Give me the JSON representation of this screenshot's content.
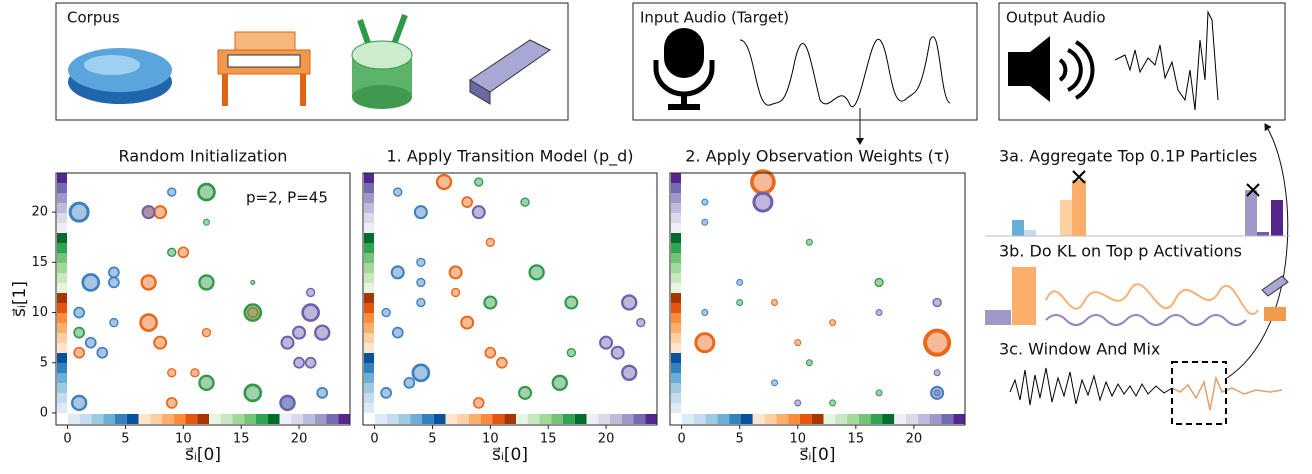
{
  "panels": {
    "corpus": "Corpus",
    "input": "Input Audio (Target)",
    "output": "Output Audio",
    "step3a": "3a. Aggregate Top 0.1P Particles",
    "step3b": "3b. Do KL on Top p Activations",
    "step3c": "3c. Window And Mix"
  },
  "chart_data": [
    {
      "type": "scatter",
      "title": "Random Initialization",
      "annotation": "p=2, P=45",
      "x_label": "s⃗ᵢ[0]",
      "y_label": "s⃗ᵢ[1]",
      "xlim": [
        -1,
        24.4
      ],
      "ylim": [
        -1.2,
        23.9
      ],
      "xticks": [
        0,
        5,
        10,
        15,
        20
      ],
      "yticks": [
        0,
        5,
        10,
        15,
        20
      ],
      "series": [
        {
          "color": "#3b7fc0",
          "x": [
            1,
            2,
            4,
            4,
            2,
            1,
            4,
            1,
            19,
            22,
            9,
            3
          ],
          "values": [
            20,
            13,
            14,
            13,
            7,
            10,
            9,
            1,
            1,
            2,
            22,
            6
          ],
          "sizes": [
            9,
            8,
            5,
            5,
            5,
            5,
            4,
            7,
            7,
            5,
            4,
            5
          ]
        },
        {
          "color": "#e8691a",
          "x": [
            7,
            10,
            7,
            8,
            7,
            11,
            9,
            1,
            12,
            8,
            16,
            9
          ],
          "values": [
            9,
            16,
            13,
            20,
            20,
            4,
            1,
            6,
            8,
            7,
            10,
            4
          ],
          "sizes": [
            8,
            5,
            7,
            6,
            6,
            4,
            5,
            5,
            4,
            6,
            5,
            4
          ]
        },
        {
          "color": "#2e9a48",
          "x": [
            12,
            12,
            16,
            16,
            16,
            12,
            1,
            12,
            9
          ],
          "values": [
            22,
            13,
            13,
            10,
            2,
            3,
            8,
            19,
            16
          ],
          "sizes": [
            8,
            7,
            2,
            8,
            8,
            7,
            5,
            3,
            4
          ]
        },
        {
          "color": "#6f5fac",
          "x": [
            21,
            20,
            21,
            22,
            19,
            7,
            21,
            19,
            20
          ],
          "values": [
            10,
            8,
            5,
            8,
            7,
            20,
            12,
            1,
            5
          ],
          "sizes": [
            8,
            6,
            5,
            7,
            6,
            6,
            4,
            7,
            5
          ]
        }
      ]
    },
    {
      "type": "scatter",
      "title": "1. Apply Transition Model (p_d)",
      "x_label": "s⃗ᵢ[0]",
      "xlim": [
        -1,
        24.4
      ],
      "ylim": [
        -1.2,
        23.9
      ],
      "xticks": [
        0,
        5,
        10,
        15,
        20
      ],
      "yticks": [
        0,
        5,
        10,
        15,
        20
      ],
      "series": [
        {
          "color": "#3b7fc0",
          "x": [
            2,
            4,
            2,
            4,
            4,
            1,
            4,
            2,
            4,
            1,
            3
          ],
          "values": [
            22,
            20,
            14,
            15,
            13,
            10,
            11,
            8,
            4,
            2,
            3
          ],
          "sizes": [
            4,
            6,
            6,
            4,
            4,
            4,
            4,
            5,
            8,
            5,
            5
          ]
        },
        {
          "color": "#e8691a",
          "x": [
            6,
            8,
            7,
            8,
            10,
            9,
            10,
            11,
            7
          ],
          "values": [
            23,
            21,
            14,
            9,
            6,
            1,
            17,
            5,
            12
          ],
          "sizes": [
            7,
            5,
            6,
            6,
            5,
            5,
            4,
            5,
            4
          ]
        },
        {
          "color": "#2e9a48",
          "x": [
            9,
            13,
            14,
            17,
            16,
            13,
            17,
            10
          ],
          "values": [
            23,
            21,
            14,
            11,
            3,
            2,
            6,
            11
          ],
          "sizes": [
            4,
            4,
            7,
            6,
            7,
            6,
            4,
            6
          ]
        },
        {
          "color": "#6f5fac",
          "x": [
            22,
            23,
            22,
            20,
            21,
            9
          ],
          "values": [
            11,
            9,
            4,
            7,
            6,
            20
          ],
          "sizes": [
            7,
            4,
            7,
            6,
            6,
            6
          ]
        }
      ]
    },
    {
      "type": "scatter",
      "title": "2. Apply Observation Weights (τ)",
      "x_label": "s⃗ᵢ[0]",
      "xlim": [
        -1,
        24.4
      ],
      "ylim": [
        -1.2,
        23.9
      ],
      "xticks": [
        0,
        5,
        10,
        15,
        20
      ],
      "yticks": [
        0,
        5,
        10,
        15,
        20
      ],
      "series": [
        {
          "color": "#3b7fc0",
          "x": [
            2,
            2,
            22,
            2,
            5,
            8
          ],
          "values": [
            21,
            19,
            2,
            10,
            13,
            3
          ],
          "sizes": [
            3,
            3,
            6,
            3,
            3,
            3
          ]
        },
        {
          "color": "#e8691a",
          "x": [
            7,
            2,
            22,
            10,
            8,
            13
          ],
          "values": [
            23,
            7,
            7,
            7,
            11,
            9
          ],
          "sizes": [
            11,
            9,
            12,
            3,
            3,
            3
          ]
        },
        {
          "color": "#2e9a48",
          "x": [
            11,
            17,
            13,
            11,
            17,
            5
          ],
          "values": [
            17,
            13,
            1,
            5,
            2,
            11
          ],
          "sizes": [
            3,
            4,
            3,
            3,
            3,
            3
          ]
        },
        {
          "color": "#6f5fac",
          "x": [
            7,
            22,
            17,
            22,
            22,
            10
          ],
          "values": [
            21,
            11,
            10,
            4,
            2,
            1
          ],
          "sizes": [
            9,
            4,
            3,
            3,
            3,
            3
          ]
        }
      ]
    }
  ]
}
